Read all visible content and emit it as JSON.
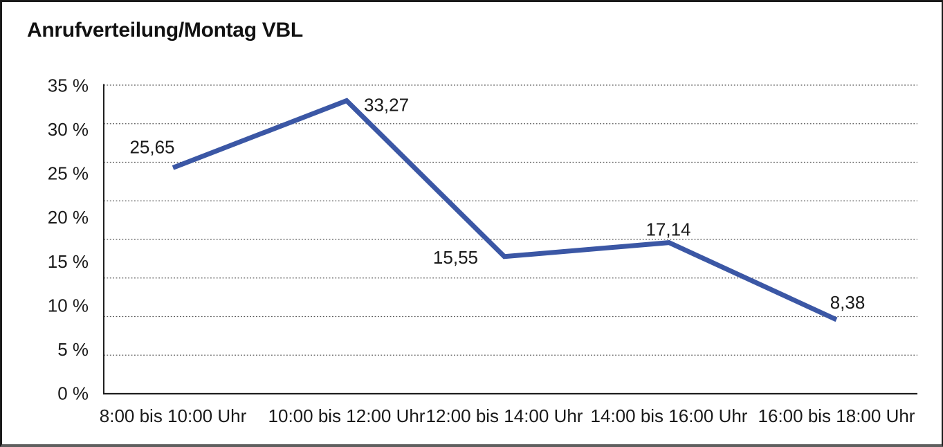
{
  "window": {
    "background": "#ffffff",
    "border_color": "#1b1b1b",
    "bottom_border_color": "#5f5f5f"
  },
  "chart_data": {
    "type": "line",
    "title": "Anrufverteilung/Montag VBL",
    "categories": [
      "8:00 bis 10:00 Uhr",
      "10:00 bis 12:00 Uhr",
      "12:00 bis 14:00 Uhr",
      "14:00 bis 16:00 Uhr",
      "16:00 bis 18:00 Uhr"
    ],
    "series": [
      {
        "name": "Anrufverteilung Montag VBL",
        "values": [
          25.65,
          33.27,
          15.55,
          17.14,
          8.38
        ],
        "value_labels": [
          "25,65",
          "33,27",
          "15,55",
          "17,14",
          "8,38"
        ]
      }
    ],
    "xlabel": "",
    "ylabel": "",
    "ylim": [
      0,
      35
    ],
    "y_tick_values": [
      35,
      30,
      25,
      20,
      15,
      10,
      5,
      0
    ],
    "y_tick_labels": [
      "35 %",
      "30 %",
      "25 %",
      "20 %",
      "15 %",
      "10 %",
      "5 %",
      "0 %"
    ],
    "grid": "horizontal-dotted",
    "gridline_count": 9,
    "legend": "none",
    "line_color": "#3B57A5",
    "grid_color": "#555555",
    "axis_color": "#1f1f1f",
    "text_color": "#1a1a1a"
  }
}
